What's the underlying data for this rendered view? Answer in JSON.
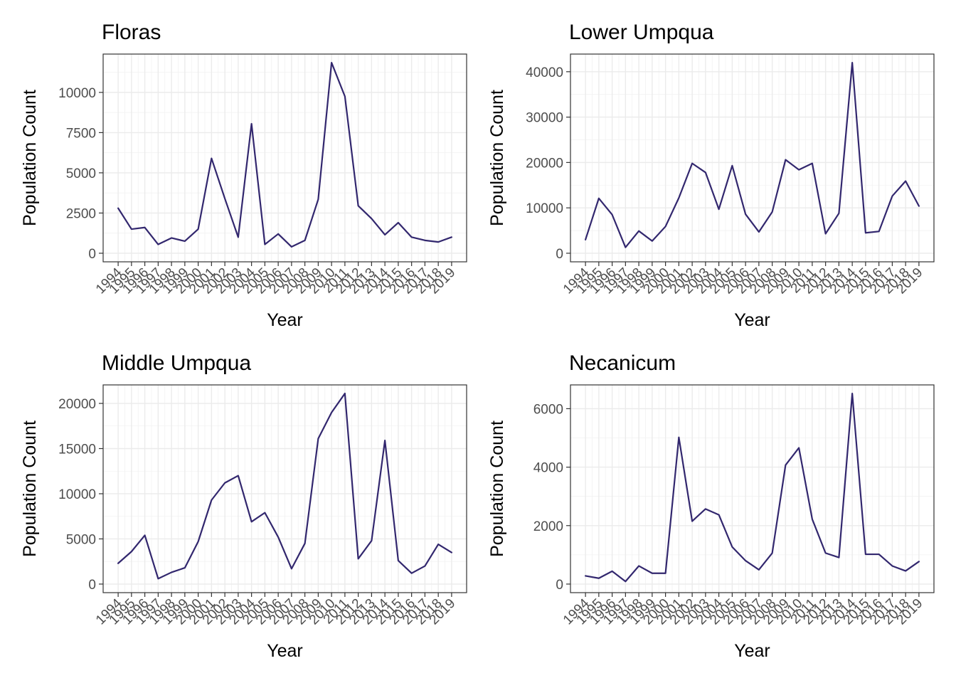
{
  "style": {
    "line_color": "#32276e"
  },
  "chart_data": [
    {
      "type": "line",
      "title": "Floras",
      "xlabel": "Year",
      "ylabel": "Population Count",
      "x": [
        1994,
        1995,
        1996,
        1997,
        1998,
        1999,
        2000,
        2001,
        2002,
        2003,
        2004,
        2005,
        2006,
        2007,
        2008,
        2009,
        2010,
        2011,
        2012,
        2013,
        2014,
        2015,
        2016,
        2017,
        2018,
        2019
      ],
      "y": [
        2800,
        1500,
        1600,
        550,
        950,
        750,
        1500,
        5900,
        3400,
        1000,
        8050,
        550,
        1200,
        400,
        800,
        3350,
        11850,
        9750,
        2950,
        2150,
        1150,
        1900,
        1000,
        800,
        700,
        1000
      ],
      "ylim": [
        0,
        12000
      ],
      "yticks": [
        0,
        2500,
        5000,
        7500,
        10000
      ],
      "grid": true
    },
    {
      "type": "line",
      "title": "Lower Umpqua",
      "xlabel": "Year",
      "ylabel": "Population Count",
      "x": [
        1994,
        1995,
        1996,
        1997,
        1998,
        1999,
        2000,
        2001,
        2002,
        2003,
        2004,
        2005,
        2006,
        2007,
        2008,
        2009,
        2010,
        2011,
        2012,
        2013,
        2014,
        2015,
        2016,
        2017,
        2018,
        2019
      ],
      "y": [
        3000,
        12100,
        8500,
        1300,
        4900,
        2700,
        5900,
        12200,
        19800,
        17800,
        9700,
        19300,
        8600,
        4700,
        9100,
        20600,
        18400,
        19800,
        4300,
        8800,
        42000,
        4500,
        4800,
        12600,
        15900,
        10400
      ],
      "ylim": [
        0,
        44000
      ],
      "yticks": [
        0,
        10000,
        20000,
        30000,
        40000
      ],
      "grid": true
    },
    {
      "type": "line",
      "title": "Middle Umpqua",
      "xlabel": "Year",
      "ylabel": "Population Count",
      "x": [
        1994,
        1995,
        1996,
        1997,
        1998,
        1999,
        2000,
        2001,
        2002,
        2003,
        2004,
        2005,
        2006,
        2007,
        2008,
        2009,
        2010,
        2011,
        2012,
        2013,
        2014,
        2015,
        2016,
        2017,
        2018,
        2019
      ],
      "y": [
        2300,
        3600,
        5400,
        600,
        1300,
        1800,
        4700,
        9300,
        11200,
        12000,
        6900,
        7900,
        5200,
        1700,
        4500,
        16100,
        19000,
        21100,
        2800,
        4800,
        15900,
        2600,
        1200,
        2000,
        4400,
        3500
      ],
      "ylim": [
        0,
        22000
      ],
      "yticks": [
        0,
        5000,
        10000,
        15000,
        20000
      ],
      "grid": true
    },
    {
      "type": "line",
      "title": "Necanicum",
      "xlabel": "Year",
      "ylabel": "Population Count",
      "x": [
        1994,
        1995,
        1996,
        1997,
        1998,
        1999,
        2000,
        2001,
        2002,
        2003,
        2004,
        2005,
        2006,
        2007,
        2008,
        2009,
        2010,
        2011,
        2012,
        2013,
        2014,
        2015,
        2016,
        2017,
        2018,
        2019
      ],
      "y": [
        280,
        200,
        440,
        90,
        620,
        370,
        370,
        5020,
        2150,
        2570,
        2370,
        1270,
        800,
        490,
        1060,
        4070,
        4660,
        2220,
        1060,
        910,
        6520,
        1020,
        1020,
        620,
        450,
        770
      ],
      "ylim": [
        0,
        6800
      ],
      "yticks": [
        0,
        2000,
        4000,
        6000
      ],
      "grid": true
    }
  ]
}
